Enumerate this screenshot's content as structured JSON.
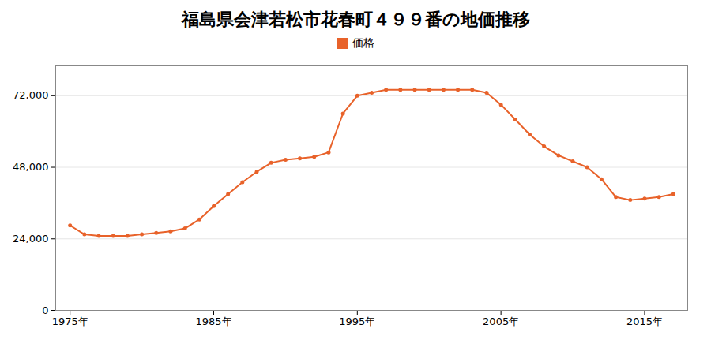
{
  "chart_data": {
    "type": "line",
    "title": "福島県会津若松市花春町４９９番の地価推移",
    "series": [
      {
        "name": "価格",
        "color": "#E8622A",
        "marker": "circle",
        "values": [
          28500,
          25500,
          25000,
          25000,
          25000,
          25500,
          26000,
          26500,
          27500,
          30500,
          35000,
          39000,
          43000,
          46500,
          49500,
          50500,
          51000,
          51500,
          53000,
          66000,
          72000,
          73000,
          74000,
          74000,
          74000,
          74000,
          74000,
          74000,
          74000,
          73000,
          69000,
          64000,
          59000,
          55000,
          52000,
          50000,
          48000,
          44000,
          38000,
          37000,
          37500,
          38000,
          39000
        ]
      }
    ],
    "x": [
      1975,
      1976,
      1977,
      1978,
      1979,
      1980,
      1981,
      1982,
      1983,
      1984,
      1985,
      1986,
      1987,
      1988,
      1989,
      1990,
      1991,
      1992,
      1993,
      1994,
      1995,
      1996,
      1997,
      1998,
      1999,
      2000,
      2001,
      2002,
      2003,
      2004,
      2005,
      2006,
      2007,
      2008,
      2009,
      2010,
      2011,
      2012,
      2013,
      2014,
      2015,
      2016,
      2017
    ],
    "xlim": [
      1974,
      2018
    ],
    "xticks": [
      {
        "value": 1975,
        "label": "1975年"
      },
      {
        "value": 1985,
        "label": "1985年"
      },
      {
        "value": 1995,
        "label": "1995年"
      },
      {
        "value": 2005,
        "label": "2005年"
      },
      {
        "value": 2015,
        "label": "2015年"
      }
    ],
    "ylim": [
      0,
      82000
    ],
    "yticks": [
      0,
      {
        "value": 24000,
        "label": "24,000"
      },
      {
        "value": 48000,
        "label": "48,000"
      },
      {
        "value": 72000,
        "label": "72,000"
      }
    ],
    "grid": "y",
    "legend": "top"
  }
}
